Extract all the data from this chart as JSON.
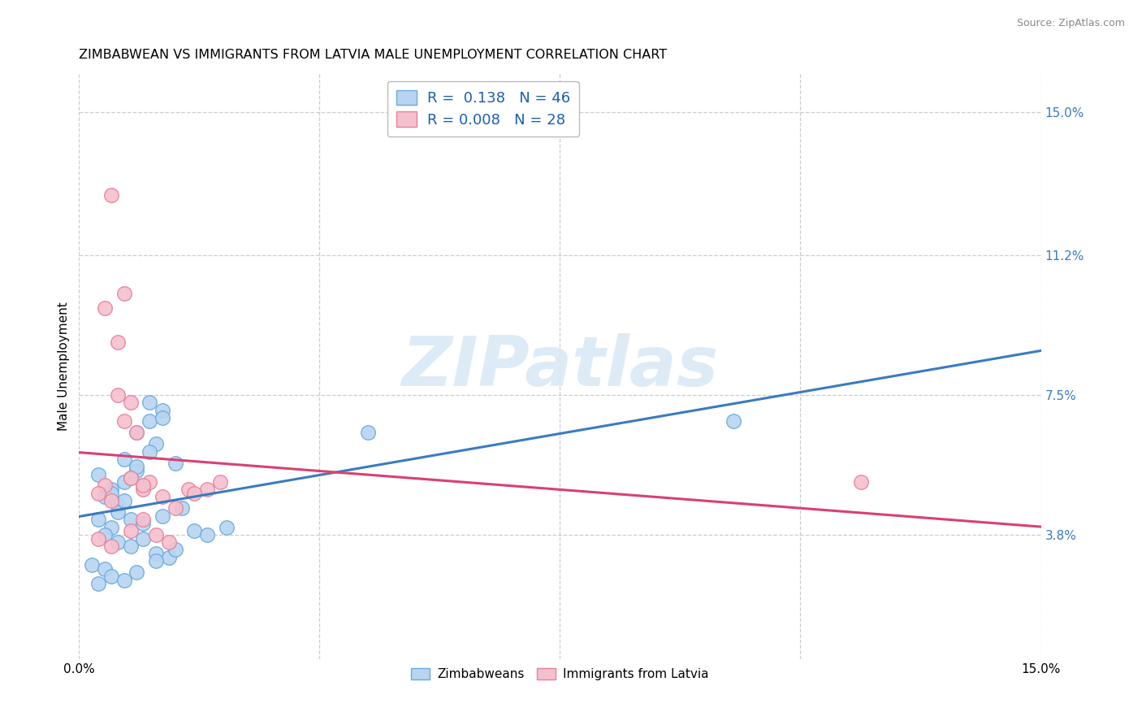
{
  "title": "ZIMBABWEAN VS IMMIGRANTS FROM LATVIA MALE UNEMPLOYMENT CORRELATION CHART",
  "source": "Source: ZipAtlas.com",
  "xmin": 0.0,
  "xmax": 15.0,
  "ymin": 0.5,
  "ymax": 16.0,
  "ylabel_ticks": [
    3.8,
    7.5,
    11.2,
    15.0
  ],
  "ylabel_tick_labels": [
    "3.8%",
    "7.5%",
    "11.2%",
    "15.0%"
  ],
  "xtick_positions": [
    0.0,
    15.0
  ],
  "xtick_labels": [
    "0.0%",
    "15.0%"
  ],
  "series1_name": "Zimbabweans",
  "series2_name": "Immigrants from Latvia",
  "series1_color": "#b8d4f0",
  "series2_color": "#f5c0ce",
  "series1_edge_color": "#6aaae0",
  "series2_edge_color": "#e8809a",
  "trendline1_color": "#3a7bbf",
  "trendline2_color": "#d94070",
  "watermark_text": "ZIPatlas",
  "grid_color": "#cccccc",
  "title_fontsize": 11.5,
  "source_fontsize": 9,
  "axis_tick_fontsize": 11,
  "legend_fontsize": 13,
  "marker_size": 160,
  "legend1_r": "0.138",
  "legend1_n": "46",
  "legend2_r": "0.008",
  "legend2_n": "28",
  "series1_x": [
    0.5,
    0.7,
    0.9,
    1.1,
    1.3,
    0.4,
    0.6,
    0.8,
    1.0,
    1.2,
    1.5,
    0.3,
    0.5,
    0.7,
    0.9,
    1.1,
    1.3,
    0.4,
    0.6,
    0.8,
    1.0,
    0.2,
    0.4,
    0.6,
    0.8,
    1.0,
    1.2,
    1.4,
    0.3,
    0.5,
    0.7,
    0.9,
    1.1,
    1.3,
    1.6,
    1.8,
    2.0,
    2.3,
    0.3,
    0.5,
    0.7,
    0.9,
    1.2,
    1.5,
    10.2,
    4.5
  ],
  "series1_y": [
    5.0,
    5.2,
    5.5,
    6.8,
    7.1,
    4.8,
    4.6,
    5.3,
    5.1,
    6.2,
    5.7,
    4.2,
    4.0,
    5.8,
    6.5,
    7.3,
    6.9,
    3.8,
    3.6,
    3.5,
    3.7,
    3.0,
    2.9,
    4.4,
    4.2,
    4.1,
    3.3,
    3.2,
    5.4,
    4.9,
    4.7,
    5.6,
    6.0,
    4.3,
    4.5,
    3.9,
    3.8,
    4.0,
    2.5,
    2.7,
    2.6,
    2.8,
    3.1,
    3.4,
    6.8,
    6.5
  ],
  "series2_x": [
    0.4,
    0.6,
    0.8,
    1.0,
    1.2,
    0.3,
    0.5,
    0.7,
    0.9,
    1.1,
    1.4,
    0.4,
    0.6,
    0.8,
    1.0,
    1.3,
    1.7,
    2.2,
    0.3,
    0.5,
    0.8,
    1.0,
    1.5,
    2.0,
    0.5,
    0.7,
    1.8,
    12.2
  ],
  "series2_y": [
    5.1,
    7.5,
    7.3,
    5.0,
    3.8,
    4.9,
    4.7,
    6.8,
    6.5,
    5.2,
    3.6,
    9.8,
    8.9,
    5.3,
    5.1,
    4.8,
    5.0,
    5.2,
    3.7,
    3.5,
    3.9,
    4.2,
    4.5,
    5.0,
    12.8,
    10.2,
    4.9,
    5.2
  ]
}
